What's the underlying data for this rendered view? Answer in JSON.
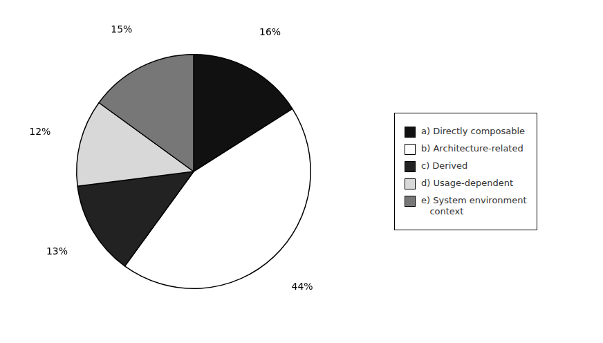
{
  "chart_data": {
    "type": "pie",
    "categories": [
      "a) Directly composable",
      "b) Architecture-related",
      "c) Derived",
      "d) Usage-dependent",
      "e) System environment\n   context"
    ],
    "values": [
      16,
      44,
      13,
      12,
      15
    ],
    "value_labels": [
      "16%",
      "44%",
      "13%",
      "12%",
      "15%"
    ],
    "colors": [
      "#111111",
      "#ffffff",
      "#222222",
      "#d8d8d8",
      "#777777"
    ],
    "data_labels": true,
    "legend": "right"
  }
}
